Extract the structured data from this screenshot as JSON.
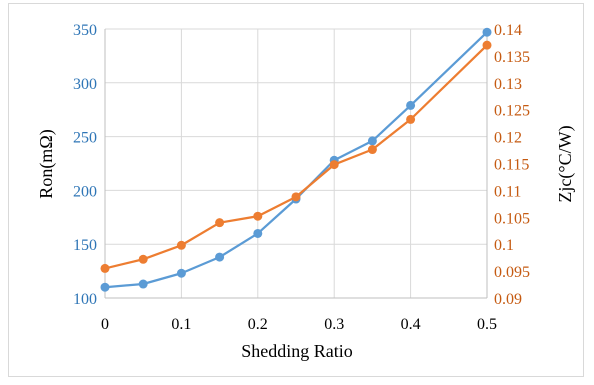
{
  "chart_data": {
    "type": "line",
    "xlabel": "Shedding Ratio",
    "x": [
      0,
      0.05,
      0.1,
      0.15,
      0.2,
      0.25,
      0.3,
      0.35,
      0.4,
      0.5
    ],
    "x_ticks": [
      "0",
      "0.1",
      "0.2",
      "0.3",
      "0.4",
      "0.5"
    ],
    "x_tick_values": [
      0,
      0.1,
      0.2,
      0.3,
      0.4,
      0.5
    ],
    "xlim": [
      0,
      0.5
    ],
    "grid": true,
    "legend": "none",
    "y_left": {
      "label": "Ron(mΩ)",
      "ylim": [
        100,
        350
      ],
      "ticks": [
        "100",
        "150",
        "200",
        "250",
        "300",
        "350"
      ],
      "tick_values": [
        100,
        150,
        200,
        250,
        300,
        350
      ],
      "color": "#2e75b6"
    },
    "y_right": {
      "label": "Zjc(°C/W)",
      "ylim": [
        0.09,
        0.14
      ],
      "ticks": [
        "0.09",
        "0.095",
        "0.1",
        "0.105",
        "0.11",
        "0.115",
        "0.12",
        "0.125",
        "0.13",
        "0.135",
        "0.14"
      ],
      "tick_values": [
        0.09,
        0.095,
        0.1,
        0.105,
        0.11,
        0.115,
        0.12,
        0.125,
        0.13,
        0.135,
        0.14
      ],
      "color": "#c55a11"
    },
    "series": [
      {
        "axis": "left",
        "color": "#5b9bd5",
        "values": [
          110,
          113,
          123,
          138,
          160,
          192,
          228,
          246,
          279,
          347
        ]
      },
      {
        "axis": "right",
        "color": "#ed7d31",
        "values": [
          0.0955,
          0.0972,
          0.0998,
          0.104,
          0.1052,
          0.1088,
          0.1148,
          0.1176,
          0.1232,
          0.137
        ]
      }
    ]
  }
}
